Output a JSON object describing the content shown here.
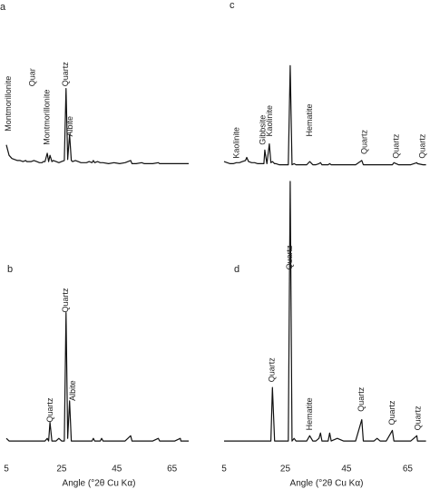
{
  "chart_data": [
    {
      "type": "line",
      "label": "a",
      "color": "#111111",
      "xlim": [
        5,
        72
      ],
      "ylim": [
        0,
        100
      ],
      "x": [
        5,
        6,
        7,
        8,
        9,
        10,
        11,
        12,
        12.4,
        13,
        14,
        15,
        16,
        17,
        18,
        18.3,
        19,
        19.8,
        20.3,
        20.8,
        21.5,
        22,
        23,
        24,
        25,
        26,
        26.6,
        27.2,
        27.9,
        28.5,
        29,
        30,
        31,
        32,
        33,
        34,
        35,
        36,
        36.5,
        37,
        38,
        39,
        39.5,
        40,
        42,
        44,
        46,
        48,
        50,
        50.5,
        52,
        54,
        55,
        56,
        58,
        60,
        60.5,
        62,
        64,
        66,
        68,
        68.2,
        70,
        71
      ],
      "values": [
        22,
        12,
        9,
        8,
        7,
        7,
        6,
        7,
        6,
        6,
        6,
        7,
        6,
        5,
        5,
        6,
        6,
        14,
        6,
        12,
        6,
        7,
        6,
        5,
        6,
        7,
        76,
        8,
        32,
        7,
        6,
        7,
        6,
        5,
        5,
        5,
        6,
        5,
        7,
        5,
        6,
        5,
        5,
        5,
        4,
        5,
        4,
        5,
        7,
        4,
        4,
        5,
        4,
        4,
        4,
        5,
        4,
        4,
        4,
        4,
        4,
        4,
        4,
        4
      ],
      "annotations": [
        {
          "text": "Montmorillonite",
          "x": 5.8,
          "y": 35
        },
        {
          "text": "Quar",
          "x": 14.5,
          "y": 78
        },
        {
          "text": "Montmorillonite",
          "x": 19.8,
          "y": 22
        },
        {
          "text": "Quartz",
          "x": 26.6,
          "y": 78
        },
        {
          "text": "Albite",
          "x": 28.2,
          "y": 30
        }
      ]
    },
    {
      "type": "line",
      "label": "b",
      "color": "#111111",
      "xlim": [
        5,
        72
      ],
      "ylim": [
        0,
        100
      ],
      "x": [
        5,
        6,
        7,
        8,
        9,
        10,
        11,
        12,
        12.4,
        13,
        14,
        15,
        16,
        17,
        18,
        18.3,
        19,
        19.8,
        20.3,
        20.8,
        21.5,
        22,
        23,
        24,
        25,
        26,
        26.6,
        27.2,
        27.9,
        28.5,
        29,
        30,
        31,
        32,
        33,
        34,
        35,
        36,
        36.5,
        37,
        38,
        39,
        39.5,
        40,
        42,
        44,
        46,
        48,
        50,
        50.5,
        52,
        54,
        55,
        56,
        58,
        60,
        60.5,
        62,
        64,
        66,
        68,
        68.2,
        70,
        71
      ],
      "values": [
        4,
        3,
        3,
        3,
        3,
        3,
        3,
        3,
        3,
        3,
        3,
        3,
        3,
        3,
        3,
        3,
        3,
        4,
        3,
        10,
        3,
        3,
        3,
        4,
        3,
        3,
        51,
        4,
        18,
        3,
        3,
        3,
        3,
        3,
        3,
        3,
        3,
        3,
        4,
        3,
        3,
        3,
        4,
        3,
        3,
        3,
        3,
        3,
        5,
        3,
        3,
        3,
        3,
        3,
        3,
        4,
        3,
        3,
        3,
        3,
        4,
        3,
        3,
        3
      ],
      "annotations": [
        {
          "text": "Quartz",
          "x": 21,
          "y": 10
        },
        {
          "text": "Quartz",
          "x": 26.6,
          "y": 51
        },
        {
          "text": "Albite",
          "x": 29.2,
          "y": 18
        }
      ],
      "xticks": [
        5,
        25,
        45,
        65
      ],
      "xlabel": "Angle (°2θ Cu Kα)"
    },
    {
      "type": "line",
      "label": "c",
      "color": "#111111",
      "xlim": [
        5,
        72
      ],
      "ylim": [
        0,
        100
      ],
      "x": [
        5,
        6,
        7,
        8,
        9,
        10,
        11,
        12,
        12.4,
        13,
        14,
        15,
        16,
        17,
        18,
        18.3,
        19,
        19.8,
        20.3,
        20.8,
        21.5,
        22,
        23,
        24,
        25,
        26,
        26.6,
        27.2,
        27.9,
        28.5,
        29,
        30,
        31,
        32,
        33,
        34,
        35,
        36,
        36.5,
        37,
        38,
        39,
        39.5,
        40,
        42,
        44,
        46,
        48,
        50,
        50.5,
        52,
        54,
        55,
        56,
        58,
        60,
        60.5,
        62,
        64,
        66,
        68,
        68.2,
        70,
        71
      ],
      "values": [
        6,
        5,
        4,
        4,
        5,
        5,
        6,
        7,
        10,
        6,
        5,
        5,
        4,
        4,
        4,
        17,
        4,
        23,
        5,
        6,
        4,
        4,
        3,
        3,
        3,
        3,
        98,
        3,
        4,
        3,
        3,
        3,
        3,
        3,
        6,
        3,
        3,
        4,
        5,
        3,
        3,
        3,
        4,
        3,
        3,
        3,
        3,
        3,
        7,
        3,
        3,
        3,
        3,
        3,
        3,
        3,
        5,
        3,
        3,
        3,
        5,
        4,
        3,
        3
      ],
      "annotations": [
        {
          "text": "Kaolinite",
          "x": 9.2,
          "y": 9
        },
        {
          "text": "Gibbsite",
          "x": 17.8,
          "y": 22
        },
        {
          "text": "Kaolinite",
          "x": 20,
          "y": 30
        },
        {
          "text": "Hematite",
          "x": 33,
          "y": 30
        },
        {
          "text": "Quartz",
          "x": 51,
          "y": 13
        },
        {
          "text": "Quartz",
          "x": 61.4,
          "y": 9
        },
        {
          "text": "Quartz",
          "x": 70,
          "y": 9
        }
      ]
    },
    {
      "type": "line",
      "label": "d",
      "color": "#111111",
      "xlim": [
        5,
        72
      ],
      "ylim": [
        0,
        100
      ],
      "x": [
        5,
        6,
        7,
        8,
        9,
        10,
        11,
        12,
        12.4,
        13,
        14,
        15,
        16,
        17,
        18,
        18.3,
        19,
        19.8,
        20.3,
        20.8,
        21.5,
        22,
        23,
        24,
        25,
        26,
        26.6,
        27.2,
        27.9,
        28.5,
        29,
        30,
        31,
        32,
        33,
        34,
        35,
        36,
        36.5,
        37,
        38,
        39,
        39.5,
        40,
        42,
        44,
        46,
        48,
        50,
        50.5,
        52,
        54,
        55,
        56,
        58,
        60,
        60.5,
        62,
        64,
        66,
        68,
        68.2,
        70,
        71
      ],
      "values": [
        3,
        3,
        3,
        3,
        3,
        3,
        3,
        3,
        3,
        3,
        3,
        3,
        3,
        3,
        3,
        3,
        3,
        3,
        3,
        23,
        3,
        3,
        3,
        3,
        3,
        3,
        100,
        3,
        4,
        3,
        3,
        3,
        3,
        3,
        5,
        3,
        3,
        4,
        6,
        3,
        3,
        3,
        6,
        3,
        4,
        3,
        3,
        3,
        11,
        3,
        3,
        3,
        4,
        3,
        3,
        7,
        3,
        3,
        3,
        3,
        5,
        3,
        3,
        3
      ],
      "annotations": [
        {
          "text": "Quartz",
          "x": 20.8,
          "y": 25
        },
        {
          "text": "Quartz",
          "x": 26.6,
          "y": 67
        },
        {
          "text": "Hematite",
          "x": 33,
          "y": 7
        },
        {
          "text": "Quartz",
          "x": 50,
          "y": 14
        },
        {
          "text": "Quartz",
          "x": 60,
          "y": 9
        },
        {
          "text": "Quartz",
          "x": 68.5,
          "y": 7
        }
      ],
      "xticks": [
        5,
        25,
        45,
        65
      ],
      "xlabel": "Angle (°2θ Cu Kα)"
    }
  ]
}
